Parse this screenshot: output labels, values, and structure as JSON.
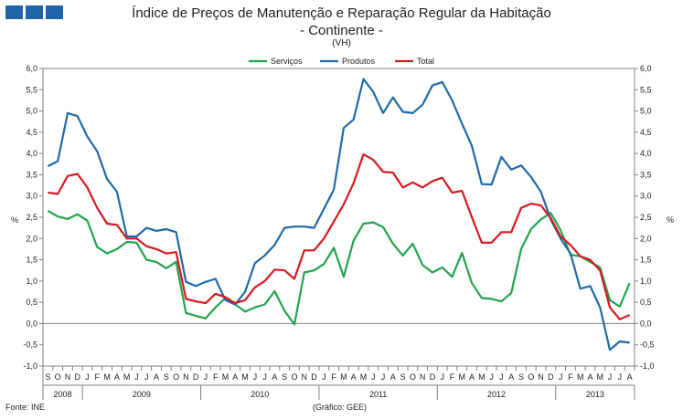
{
  "logo": {
    "color": "#1f63a8"
  },
  "chart_data": {
    "type": "line",
    "title": "Índice de Preços de Manutenção e Reparação Regular da Habitação",
    "subtitle": "- Continente -",
    "unit_label": "(VH)",
    "ylabel_left": "%",
    "ylabel_right": "%",
    "ylim": [
      -1.0,
      6.0
    ],
    "yticks": [
      "-1,0",
      "-0,5",
      "0,0",
      "0,5",
      "1,0",
      "1,5",
      "2,0",
      "2,5",
      "3,0",
      "3,5",
      "4,0",
      "4,5",
      "5,0",
      "5,5",
      "6,0"
    ],
    "months": [
      "S",
      "O",
      "N",
      "D",
      "J",
      "F",
      "M",
      "A",
      "M",
      "J",
      "J",
      "A",
      "S",
      "O",
      "N",
      "D",
      "J",
      "F",
      "M",
      "A",
      "M",
      "J",
      "J",
      "A",
      "S",
      "O",
      "N",
      "D",
      "J",
      "F",
      "M",
      "A",
      "M",
      "J",
      "J",
      "A",
      "S",
      "O",
      "N",
      "D",
      "J",
      "F",
      "M",
      "A",
      "M",
      "J",
      "J",
      "A",
      "S",
      "O",
      "N",
      "D",
      "J",
      "F",
      "M",
      "A",
      "M",
      "J",
      "J",
      "A"
    ],
    "years": [
      {
        "label": "2008",
        "start": 0,
        "end": 4
      },
      {
        "label": "2009",
        "start": 4,
        "end": 16
      },
      {
        "label": "2010",
        "start": 16,
        "end": 28
      },
      {
        "label": "2011",
        "start": 28,
        "end": 40
      },
      {
        "label": "2012",
        "start": 40,
        "end": 52
      },
      {
        "label": "2013",
        "start": 52,
        "end": 60
      }
    ],
    "series": [
      {
        "name": "Serviços",
        "color": "#22a34c",
        "values": [
          2.65,
          2.52,
          2.46,
          2.57,
          2.42,
          1.8,
          1.65,
          1.75,
          1.92,
          1.9,
          1.5,
          1.45,
          1.3,
          1.45,
          0.25,
          0.18,
          0.12,
          0.38,
          0.6,
          0.45,
          0.28,
          0.38,
          0.45,
          0.76,
          0.3,
          -0.02,
          1.2,
          1.25,
          1.4,
          1.78,
          1.1,
          1.95,
          2.35,
          2.38,
          2.27,
          1.88,
          1.6,
          1.88,
          1.38,
          1.2,
          1.32,
          1.1,
          1.66,
          0.95,
          0.6,
          0.58,
          0.52,
          0.72,
          1.75,
          2.22,
          2.45,
          2.6,
          2.2,
          1.62,
          1.58,
          1.45,
          1.32,
          0.55,
          0.4,
          0.95
        ]
      },
      {
        "name": "Produtos",
        "color": "#1f6aa8",
        "values": [
          3.7,
          3.82,
          4.95,
          4.88,
          4.4,
          4.05,
          3.4,
          3.1,
          2.05,
          2.05,
          2.25,
          2.18,
          2.22,
          2.15,
          0.98,
          0.88,
          0.98,
          1.05,
          0.55,
          0.45,
          0.75,
          1.42,
          1.6,
          1.85,
          2.25,
          2.28,
          2.28,
          2.25,
          2.7,
          3.15,
          4.6,
          4.8,
          5.75,
          5.45,
          4.95,
          5.32,
          4.98,
          4.95,
          5.15,
          5.6,
          5.68,
          5.25,
          4.7,
          4.18,
          3.28,
          3.27,
          3.92,
          3.62,
          3.72,
          3.45,
          3.1,
          2.45,
          2.0,
          1.65,
          0.82,
          0.88,
          0.38,
          -0.62,
          -0.42,
          -0.45
        ]
      },
      {
        "name": "Total",
        "color": "#d71920",
        "values": [
          3.08,
          3.05,
          3.47,
          3.52,
          3.2,
          2.72,
          2.35,
          2.32,
          2.0,
          2.0,
          1.82,
          1.75,
          1.65,
          1.68,
          0.58,
          0.52,
          0.48,
          0.7,
          0.62,
          0.48,
          0.55,
          0.85,
          1.0,
          1.27,
          1.25,
          1.05,
          1.72,
          1.72,
          2.0,
          2.4,
          2.8,
          3.3,
          3.98,
          3.85,
          3.57,
          3.55,
          3.2,
          3.32,
          3.2,
          3.35,
          3.43,
          3.08,
          3.12,
          2.5,
          1.9,
          1.9,
          2.15,
          2.15,
          2.72,
          2.82,
          2.78,
          2.48,
          2.05,
          1.85,
          1.58,
          1.5,
          1.25,
          0.38,
          0.1,
          0.2
        ]
      }
    ]
  },
  "footer": {
    "source": "Fonte: INE",
    "credit": "(Gráfico: GEE)"
  }
}
